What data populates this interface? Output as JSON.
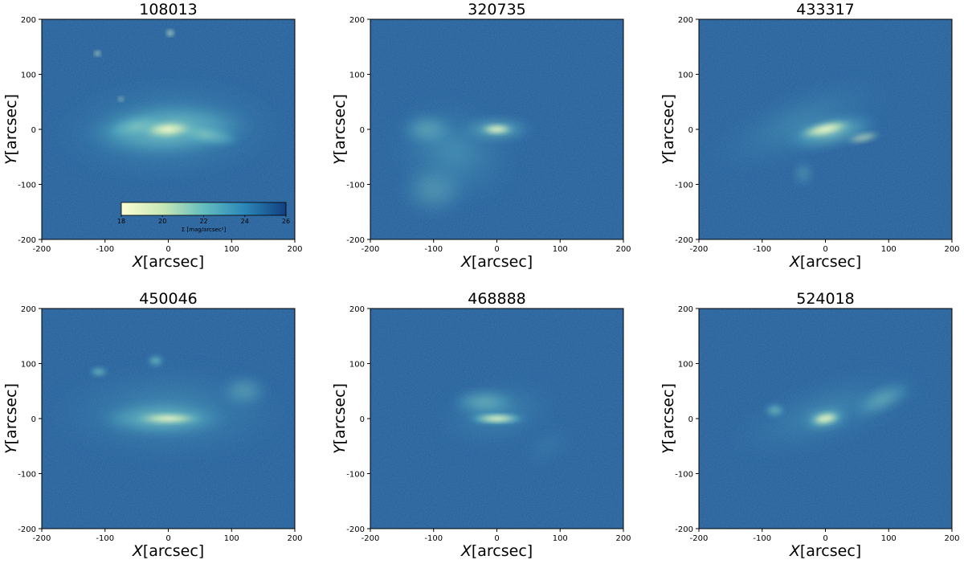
{
  "figure": {
    "x_tick_labels": [
      "-200",
      "-100",
      "0",
      "100",
      "200"
    ],
    "y_tick_labels": [
      "200",
      "100",
      "0",
      "-100",
      "-200"
    ],
    "x_label": "X[arcsec]",
    "y_label": "Y[arcsec]",
    "colors": {
      "background": "#1f5b97",
      "faint": "#2f7fb0",
      "mid": "#5cb4c4",
      "bright": "#c8e8b6",
      "core": "#fbfdd2"
    },
    "panels": [
      {
        "title": "108013",
        "morphology": "large spiral disk with two compact point sources",
        "has_colorbar": true
      },
      {
        "title": "320735",
        "morphology": "bright bar with diffuse tidal plume extending lower-left"
      },
      {
        "title": "433317",
        "morphology": "elongated tilted disk with faint extension"
      },
      {
        "title": "450046",
        "morphology": "wide disk with clumpy satellites above"
      },
      {
        "title": "468888",
        "morphology": "compact bar with faint tail to lower-right"
      },
      {
        "title": "524018",
        "morphology": "bright core with stream extending upper-right"
      }
    ],
    "colorbar": {
      "tick_labels": [
        "18",
        "20",
        "22",
        "24",
        "26"
      ],
      "range": [
        18,
        26
      ],
      "label": "Σ  [mag/arcsec²]"
    }
  }
}
